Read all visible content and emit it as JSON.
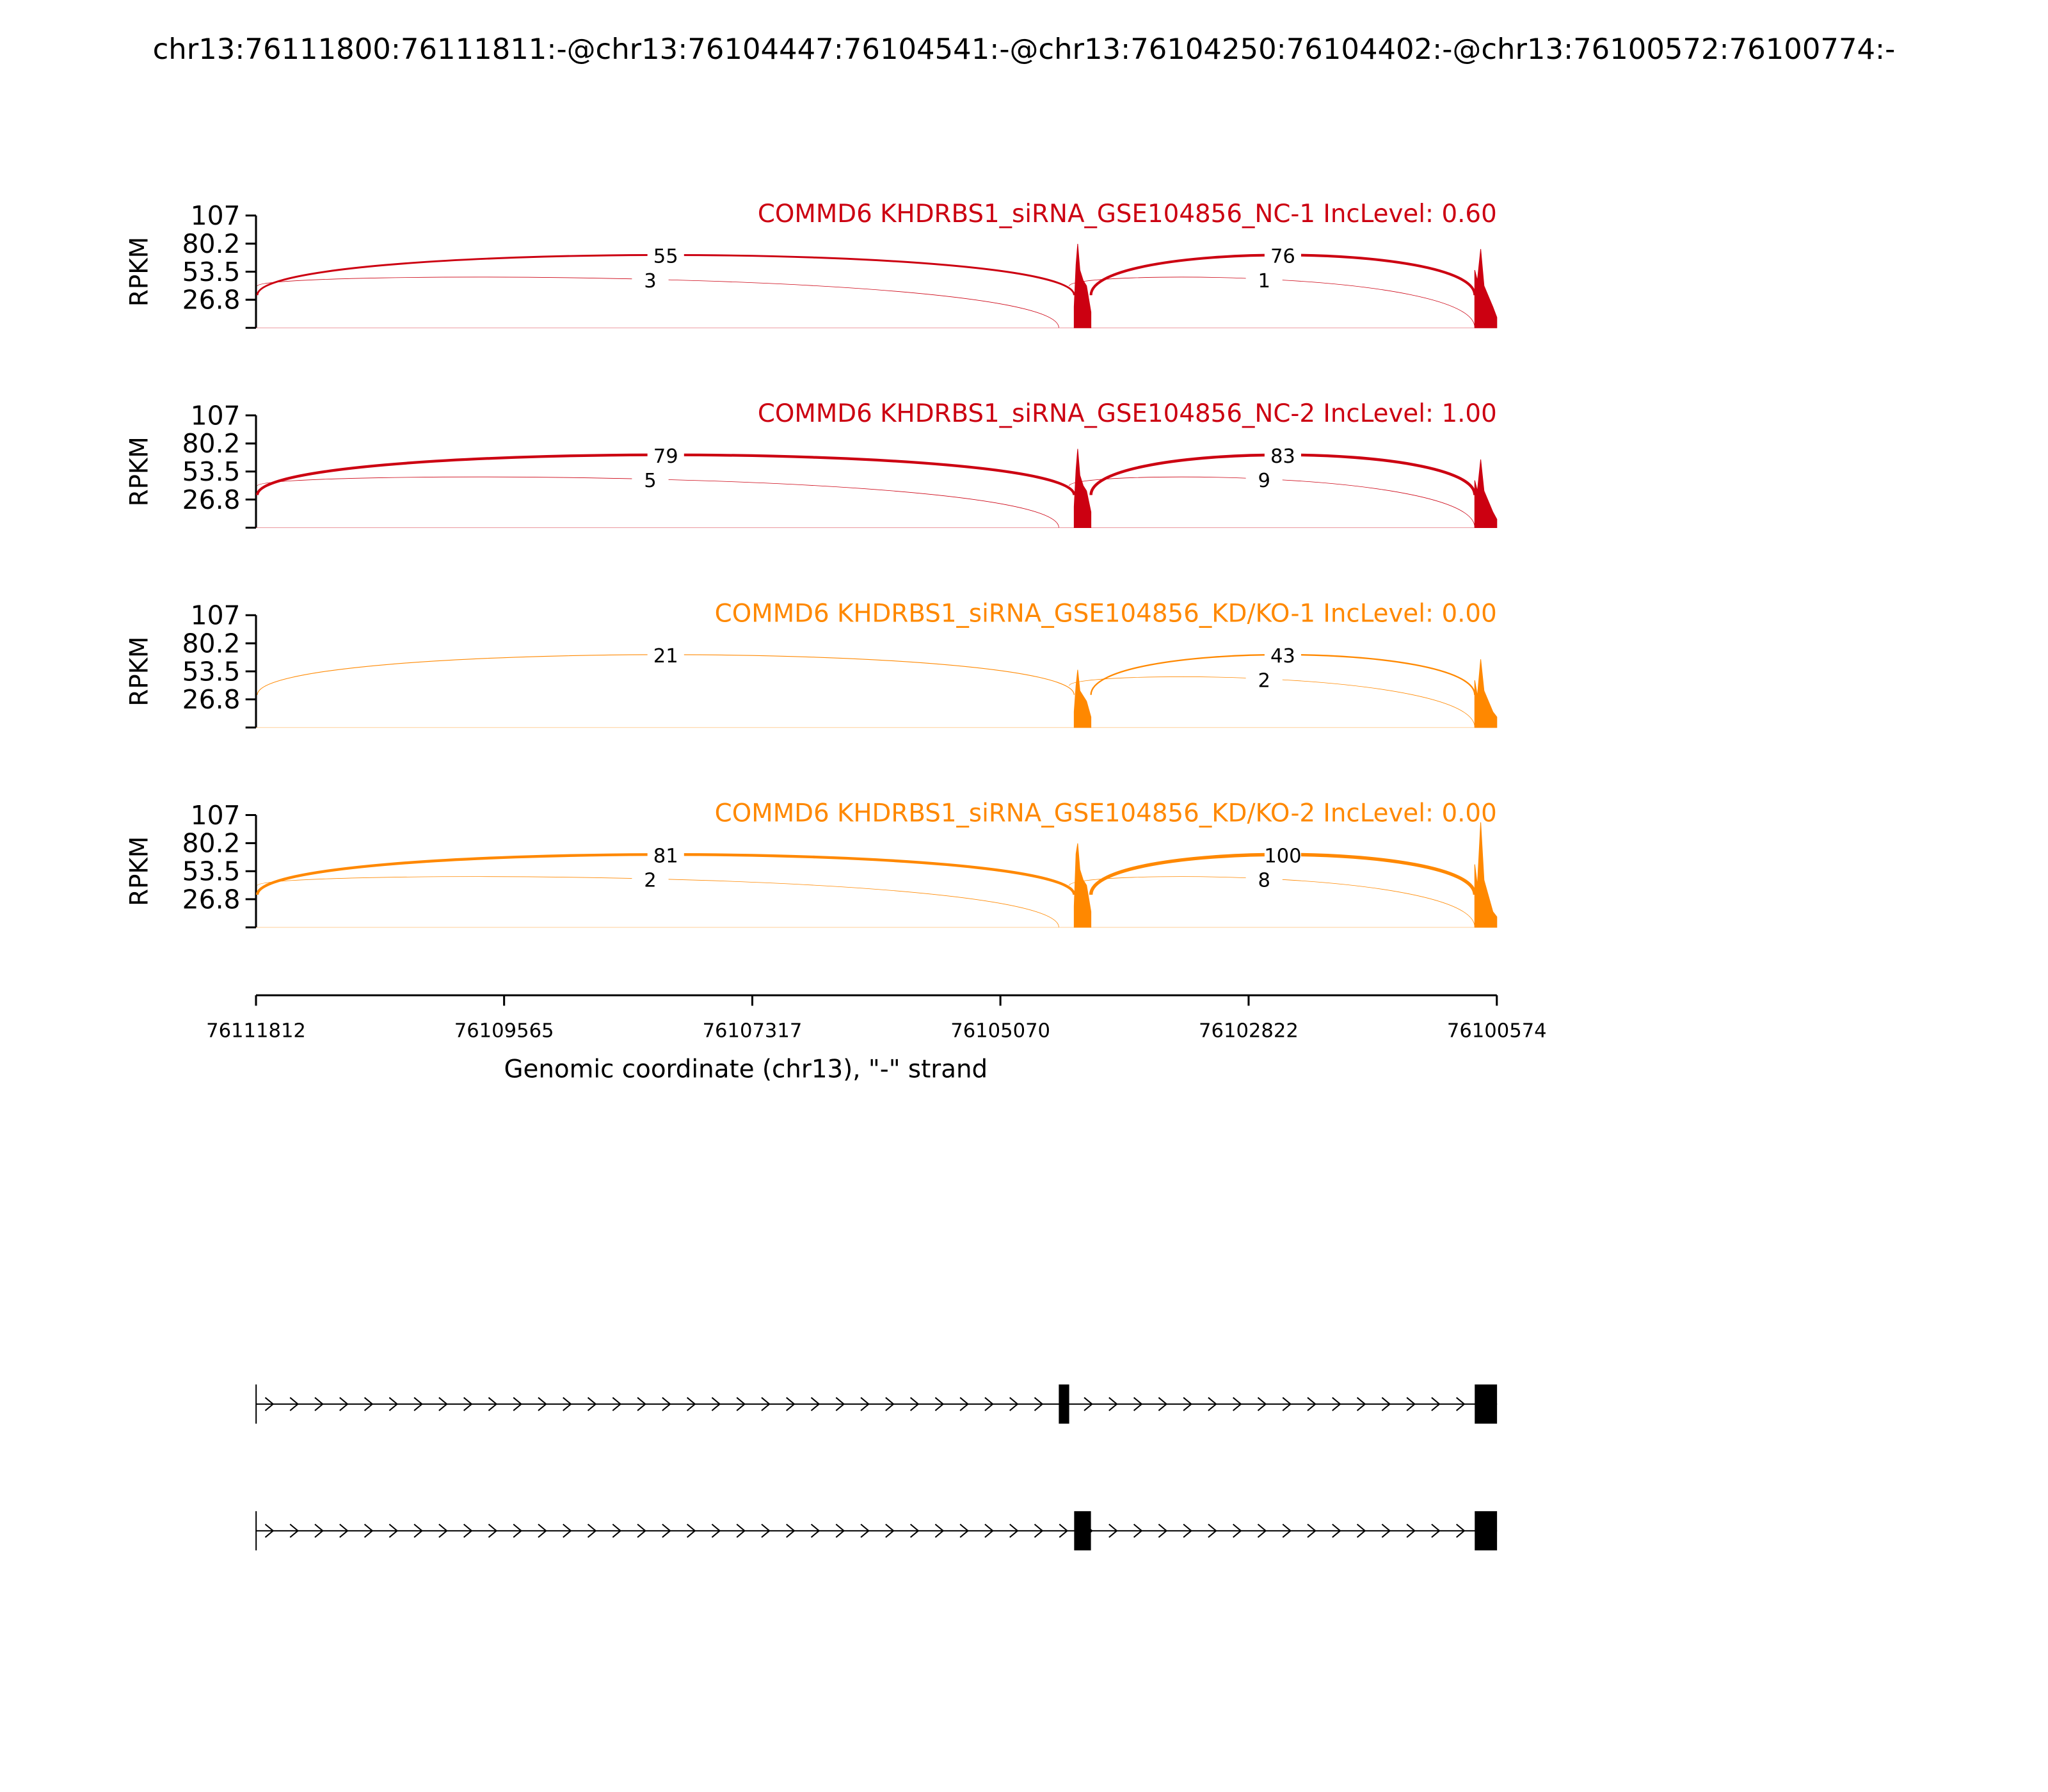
{
  "title": "chr13:76111800:76111811:-@chr13:76104447:76104541:-@chr13:76104250:76104402:-@chr13:76100572:76100774:-",
  "chart_data": [
    {
      "type": "sashimi",
      "title": "COMMD6 KHDRBS1_siRNA_GSE104856_NC-1 IncLevel: 0.60",
      "color": "#cc0011",
      "ylabel": "RPKM",
      "ylim": [
        0,
        107
      ],
      "yticks": [
        26.8,
        53.5,
        80.2,
        107
      ],
      "x": [
        76104402,
        76104385,
        76104370,
        76104350,
        76104320,
        76104290,
        76104250,
        null,
        76100774,
        76100750,
        76100720,
        76100690,
        76100650,
        76100610,
        76100574
      ],
      "values": [
        20,
        60,
        80,
        55,
        45,
        40,
        15,
        null,
        55,
        45,
        75,
        40,
        30,
        20,
        10
      ],
      "junctions": [
        {
          "start": 76111800,
          "end": 76104402,
          "count": 55
        },
        {
          "start": 76104250,
          "end": 76100774,
          "count": 76
        },
        {
          "start": 76111800,
          "end": 76104541,
          "count": 3
        },
        {
          "start": 76104447,
          "end": 76100774,
          "count": 1
        }
      ]
    },
    {
      "type": "sashimi",
      "title": "COMMD6 KHDRBS1_siRNA_GSE104856_NC-2 IncLevel: 1.00",
      "color": "#cc0011",
      "ylabel": "RPKM",
      "ylim": [
        0,
        107
      ],
      "yticks": [
        26.8,
        53.5,
        80.2,
        107
      ],
      "x": [
        76104402,
        76104385,
        76104370,
        76104350,
        76104320,
        76104290,
        76104250,
        null,
        76100774,
        76100750,
        76100720,
        76100690,
        76100650,
        76100610,
        76100574
      ],
      "values": [
        20,
        55,
        75,
        50,
        40,
        35,
        15,
        null,
        45,
        35,
        65,
        35,
        25,
        15,
        8
      ],
      "junctions": [
        {
          "start": 76111800,
          "end": 76104402,
          "count": 79
        },
        {
          "start": 76104250,
          "end": 76100774,
          "count": 83
        },
        {
          "start": 76111800,
          "end": 76104541,
          "count": 5
        },
        {
          "start": 76104447,
          "end": 76100774,
          "count": 9
        }
      ]
    },
    {
      "type": "sashimi",
      "title": "COMMD6 KHDRBS1_siRNA_GSE104856_KD/KO-1 IncLevel: 0.00",
      "color": "#ff8800",
      "ylabel": "RPKM",
      "ylim": [
        0,
        107
      ],
      "yticks": [
        26.8,
        53.5,
        80.2,
        107
      ],
      "x": [
        76104402,
        76104385,
        76104370,
        76104350,
        76104320,
        76104290,
        76104250,
        null,
        76100774,
        76100750,
        76100720,
        76100690,
        76100650,
        76100610,
        76100574
      ],
      "values": [
        15,
        40,
        55,
        35,
        30,
        25,
        10,
        null,
        45,
        30,
        65,
        35,
        25,
        15,
        10
      ],
      "junctions": [
        {
          "start": 76111800,
          "end": 76104402,
          "count": 21
        },
        {
          "start": 76104250,
          "end": 76100774,
          "count": 43
        },
        {
          "start": 76104447,
          "end": 76100774,
          "count": 2
        }
      ]
    },
    {
      "type": "sashimi",
      "title": "COMMD6 KHDRBS1_siRNA_GSE104856_KD/KO-2 IncLevel: 0.00",
      "color": "#ff8800",
      "ylabel": "RPKM",
      "ylim": [
        0,
        107
      ],
      "yticks": [
        26.8,
        53.5,
        80.2,
        107
      ],
      "x": [
        76104402,
        76104385,
        76104370,
        76104350,
        76104320,
        76104290,
        76104250,
        null,
        76100774,
        76100750,
        76100720,
        76100690,
        76100650,
        76100610,
        76100574
      ],
      "values": [
        20,
        70,
        80,
        55,
        45,
        40,
        15,
        null,
        60,
        40,
        100,
        45,
        30,
        15,
        10
      ],
      "junctions": [
        {
          "start": 76111800,
          "end": 76104402,
          "count": 81
        },
        {
          "start": 76104250,
          "end": 76100774,
          "count": 100
        },
        {
          "start": 76111800,
          "end": 76104541,
          "count": 2
        },
        {
          "start": 76104447,
          "end": 76100774,
          "count": 8
        }
      ]
    }
  ],
  "x_axis": {
    "xlim": [
      76111812,
      76100574
    ],
    "xticks": [
      76111812,
      76109565,
      76107317,
      76105070,
      76102822,
      76100574
    ],
    "xlabel": "Genomic coordinate (chr13), \"-\" strand"
  },
  "transcripts": [
    {
      "exons": [
        [
          76111811,
          76111800
        ],
        [
          76104541,
          76104447
        ],
        [
          76100774,
          76100572
        ]
      ]
    },
    {
      "exons": [
        [
          76111811,
          76111800
        ],
        [
          76104402,
          76104250
        ],
        [
          76100774,
          76100572
        ]
      ]
    }
  ]
}
